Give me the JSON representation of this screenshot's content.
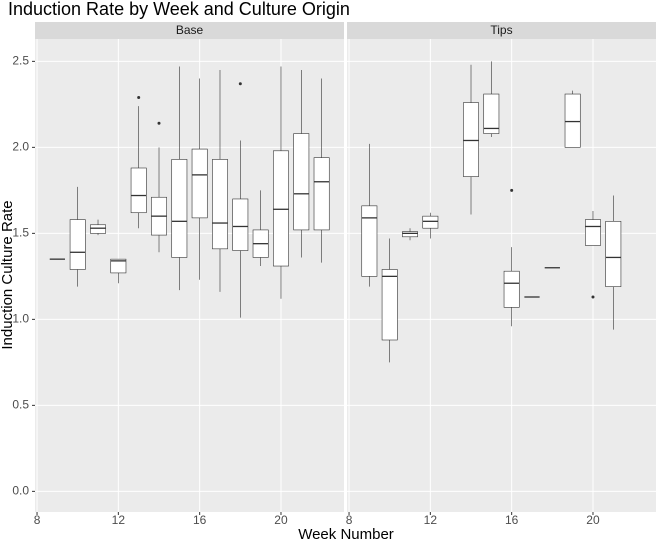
{
  "chart_data": {
    "type": "boxplot",
    "title": "Induction Rate by Week and Culture Origin",
    "x_label": "Week Number",
    "y_label": "Induction Culture Rate",
    "xlim": [
      7.9,
      23.1
    ],
    "xticks": [
      8,
      12,
      16,
      20
    ],
    "ylim": [
      -0.12,
      2.63
    ],
    "yticks": [
      {
        "value": 0,
        "label": "0.0"
      },
      0.5,
      {
        "value": 1,
        "label": "1.0"
      },
      1.5,
      {
        "value": 2,
        "label": "2.0"
      },
      2.5
    ],
    "grid": true,
    "color": "#ffffff",
    "facets": [
      {
        "name": "Base",
        "boxes": [
          {
            "x": 9,
            "min": 1.35,
            "q1": 1.35,
            "median": 1.35,
            "q3": 1.35,
            "max": 1.35
          },
          {
            "x": 10,
            "min": 1.19,
            "q1": 1.29,
            "median": 1.39,
            "q3": 1.58,
            "max": 1.77
          },
          {
            "x": 11,
            "min": 1.49,
            "q1": 1.5,
            "median": 1.53,
            "q3": 1.55,
            "max": 1.58
          },
          {
            "x": 12,
            "min": 1.21,
            "q1": 1.27,
            "median": 1.34,
            "q3": 1.35,
            "max": 1.35
          },
          {
            "x": 13,
            "min": 1.53,
            "q1": 1.62,
            "median": 1.72,
            "q3": 1.88,
            "max": 2.24,
            "outliers": [
              2.29
            ]
          },
          {
            "x": 14,
            "min": 1.39,
            "q1": 1.49,
            "median": 1.6,
            "q3": 1.71,
            "max": 2.0,
            "outliers": [
              2.14
            ]
          },
          {
            "x": 15,
            "min": 1.17,
            "q1": 1.36,
            "median": 1.57,
            "q3": 1.93,
            "max": 2.47
          },
          {
            "x": 16,
            "min": 1.23,
            "q1": 1.59,
            "median": 1.84,
            "q3": 1.99,
            "max": 2.4
          },
          {
            "x": 17,
            "min": 1.16,
            "q1": 1.41,
            "median": 1.56,
            "q3": 1.93,
            "max": 2.45
          },
          {
            "x": 18,
            "min": 1.01,
            "q1": 1.4,
            "median": 1.54,
            "q3": 1.7,
            "max": 2.04,
            "outliers": [
              2.37
            ]
          },
          {
            "x": 19,
            "min": 1.31,
            "q1": 1.36,
            "median": 1.44,
            "q3": 1.52,
            "max": 1.75
          },
          {
            "x": 20,
            "min": 1.12,
            "q1": 1.31,
            "median": 1.64,
            "q3": 1.98,
            "max": 2.47
          },
          {
            "x": 21,
            "min": 1.36,
            "q1": 1.52,
            "median": 1.73,
            "q3": 2.08,
            "max": 2.45
          },
          {
            "x": 22,
            "min": 1.33,
            "q1": 1.52,
            "median": 1.8,
            "q3": 1.94,
            "max": 2.4
          }
        ]
      },
      {
        "name": "Tips",
        "boxes": [
          {
            "x": 9,
            "min": 1.19,
            "q1": 1.25,
            "median": 1.59,
            "q3": 1.66,
            "max": 2.02
          },
          {
            "x": 10,
            "min": 0.75,
            "q1": 0.88,
            "median": 1.25,
            "q3": 1.29,
            "max": 1.47
          },
          {
            "x": 11,
            "min": 1.46,
            "q1": 1.48,
            "median": 1.5,
            "q3": 1.51,
            "max": 1.53
          },
          {
            "x": 12,
            "min": 1.47,
            "q1": 1.53,
            "median": 1.57,
            "q3": 1.6,
            "max": 1.62
          },
          {
            "x": 14,
            "min": 1.61,
            "q1": 1.83,
            "median": 2.04,
            "q3": 2.26,
            "max": 2.48
          },
          {
            "x": 15,
            "min": 2.06,
            "q1": 2.08,
            "median": 2.11,
            "q3": 2.31,
            "max": 2.5
          },
          {
            "x": 16,
            "min": 0.96,
            "q1": 1.07,
            "median": 1.21,
            "q3": 1.28,
            "max": 1.42,
            "outliers": [
              1.75
            ]
          },
          {
            "x": 17,
            "min": 1.13,
            "q1": 1.13,
            "median": 1.13,
            "q3": 1.13,
            "max": 1.13
          },
          {
            "x": 18,
            "min": 1.3,
            "q1": 1.3,
            "median": 1.3,
            "q3": 1.3,
            "max": 1.3
          },
          {
            "x": 19,
            "min": 2.0,
            "q1": 2.0,
            "median": 2.15,
            "q3": 2.31,
            "max": 2.33
          },
          {
            "x": 20,
            "min": 1.43,
            "q1": 1.43,
            "median": 1.54,
            "q3": 1.58,
            "max": 1.63,
            "outliers": [
              1.13
            ]
          },
          {
            "x": 21,
            "min": 0.94,
            "q1": 1.19,
            "median": 1.36,
            "q3": 1.57,
            "max": 1.72
          }
        ]
      }
    ]
  }
}
